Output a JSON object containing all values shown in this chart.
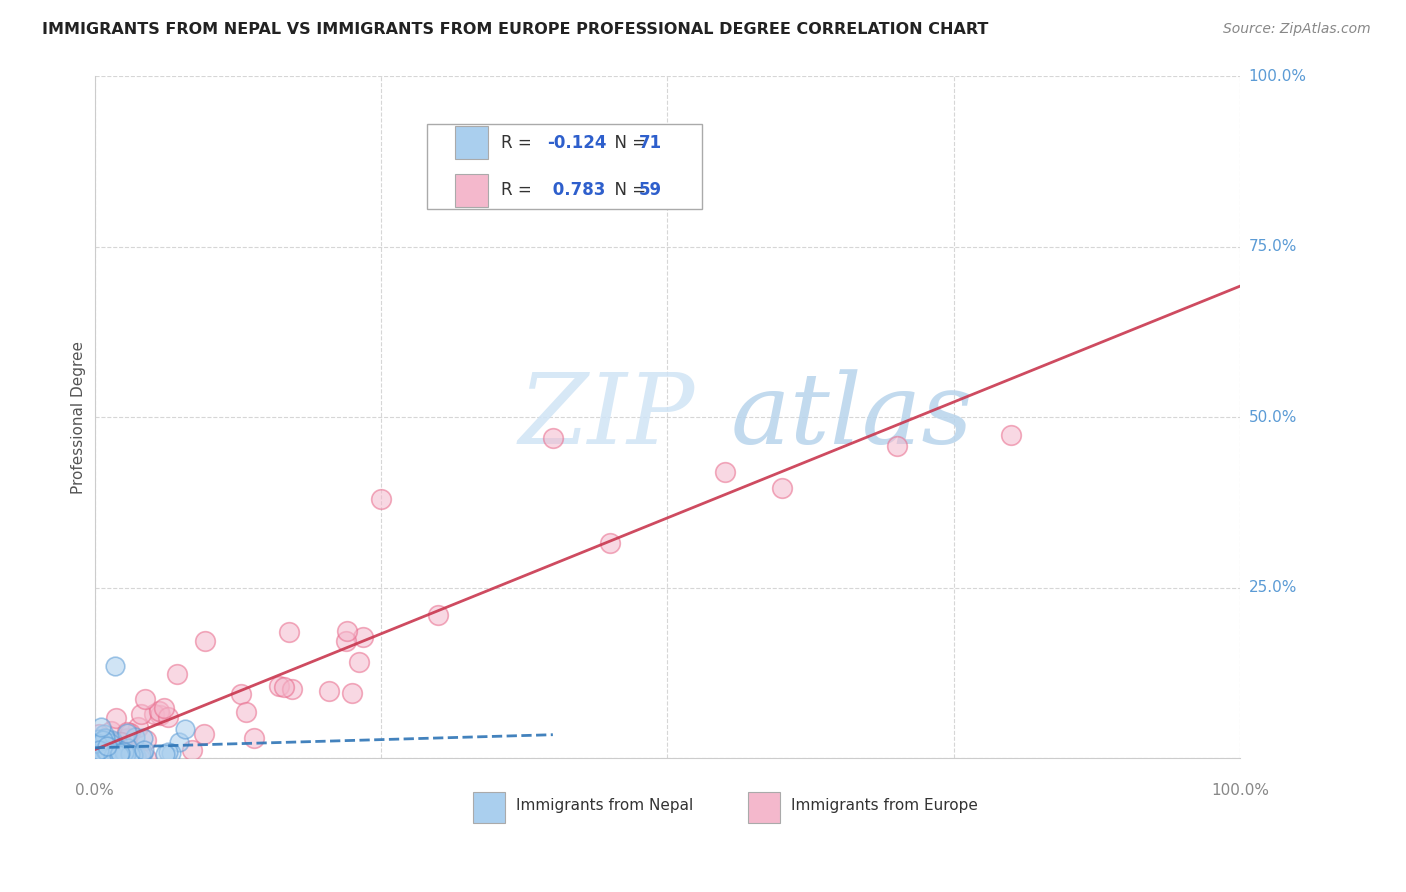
{
  "title": "IMMIGRANTS FROM NEPAL VS IMMIGRANTS FROM EUROPE PROFESSIONAL DEGREE CORRELATION CHART",
  "source": "Source: ZipAtlas.com",
  "ylabel": "Professional Degree",
  "legend_nepal": "Immigrants from Nepal",
  "legend_europe": "Immigrants from Europe",
  "nepal_R": -0.124,
  "nepal_N": 71,
  "europe_R": 0.783,
  "europe_N": 59,
  "nepal_color": "#AACFEE",
  "nepal_edge_color": "#5B9BD5",
  "nepal_line_color": "#2E75B6",
  "europe_color": "#F4B8CC",
  "europe_edge_color": "#E8698A",
  "europe_line_color": "#C9374F",
  "watermark_zip_color": "#D0E4F5",
  "watermark_atlas_color": "#B8D4EC",
  "background_color": "#ffffff",
  "grid_color": "#cccccc",
  "right_axis_color": "#5B9BD5",
  "title_color": "#222222",
  "source_color": "#888888",
  "ylabel_color": "#555555",
  "bottom_label_color": "#888888"
}
